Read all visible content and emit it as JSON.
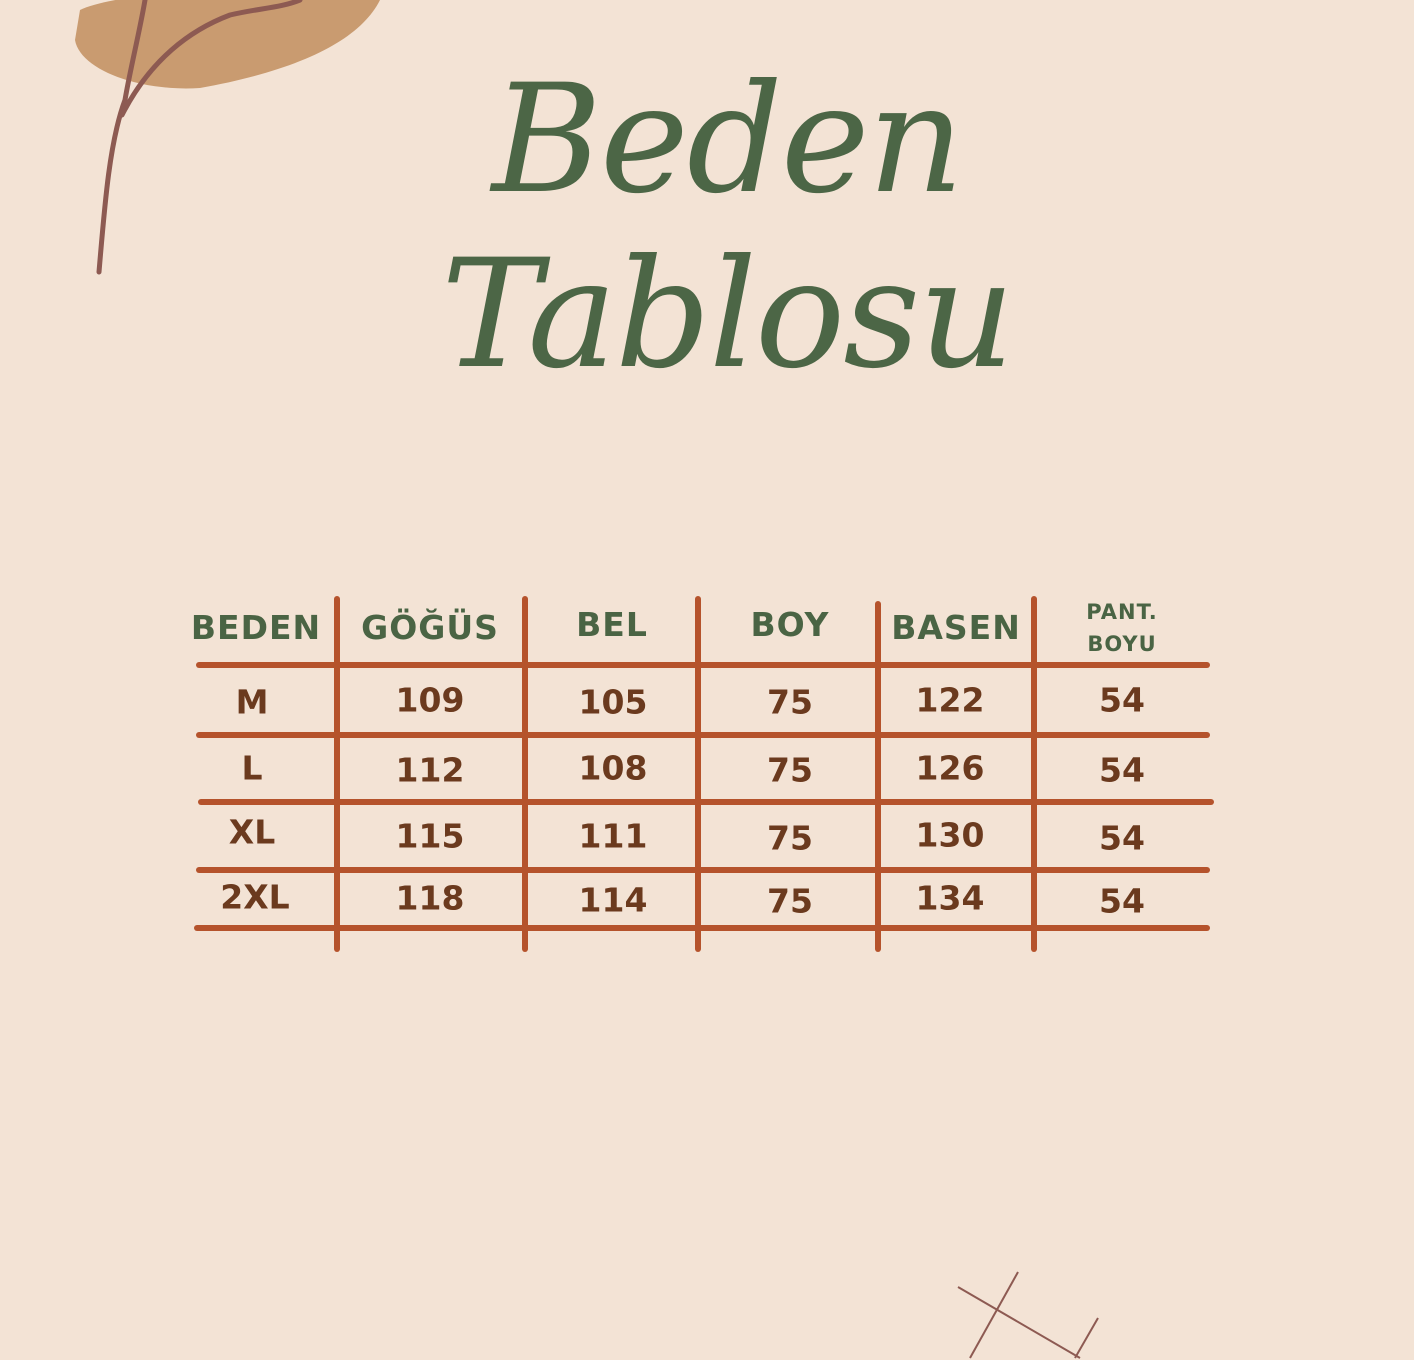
{
  "title": {
    "line1": "Beden",
    "line2": "Tablosu"
  },
  "colors": {
    "background": "#f3e3d5",
    "title": "#4c6646",
    "header": "#4a6444",
    "grid": "#b5532c",
    "values": "#6b3a1e",
    "leaf": "#c99b70",
    "stem": "#8d5a52"
  },
  "table": {
    "headers": [
      "BEDEN",
      "GÖĞÜS",
      "BEL",
      "BOY",
      "BASEN",
      "PANT.",
      "BOYU"
    ],
    "rows": [
      [
        "M",
        "109",
        "105",
        "75",
        "122",
        "54"
      ],
      [
        "L",
        "112",
        "108",
        "75",
        "126",
        "54"
      ],
      [
        "XL",
        "115",
        "111",
        "75",
        "130",
        "54"
      ],
      [
        "2XL",
        "118",
        "114",
        "75",
        "134",
        "54"
      ]
    ]
  }
}
